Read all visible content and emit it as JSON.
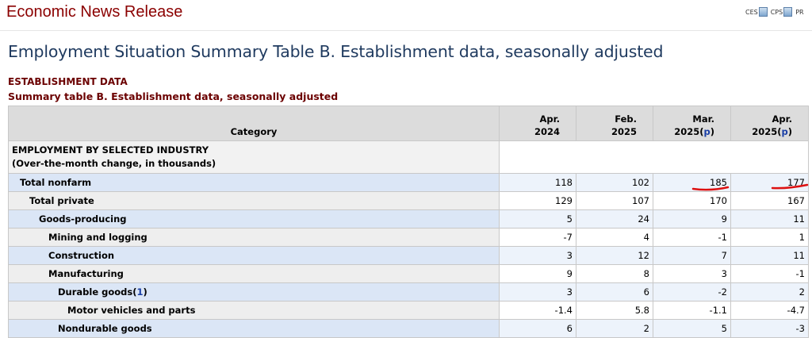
{
  "header": {
    "title": "Economic News Release",
    "links": [
      {
        "label": "CES",
        "icon": "pdf-icon"
      },
      {
        "label": "CPS",
        "icon": "pdf-icon"
      },
      {
        "label": "PR",
        "icon": "pdf-icon"
      }
    ]
  },
  "page_title": "Employment Situation Summary Table B. Establishment data, seasonally adjusted",
  "section_heading": "ESTABLISHMENT DATA",
  "table": {
    "caption": "Summary table B. Establishment data, seasonally adjusted",
    "category_header": "Category",
    "period_headers": [
      {
        "line1": "Apr.",
        "line2": "2024",
        "footnote": ""
      },
      {
        "line1": "Feb.",
        "line2": "2025",
        "footnote": ""
      },
      {
        "line1": "Mar.",
        "line2": "2025",
        "footnote": "p"
      },
      {
        "line1": "Apr.",
        "line2": "2025",
        "footnote": "p"
      }
    ],
    "group": {
      "title": "EMPLOYMENT BY SELECTED INDUSTRY",
      "subtitle": "(Over-the-month change, in thousands)"
    },
    "rows": [
      {
        "label": "Total nonfarm",
        "footnote": "",
        "values": [
          "118",
          "102",
          "185",
          "177"
        ]
      },
      {
        "label": "Total private",
        "footnote": "",
        "values": [
          "129",
          "107",
          "170",
          "167"
        ]
      },
      {
        "label": "Goods-producing",
        "footnote": "",
        "values": [
          "5",
          "24",
          "9",
          "11"
        ]
      },
      {
        "label": "Mining and logging",
        "footnote": "",
        "values": [
          "-7",
          "4",
          "-1",
          "1"
        ]
      },
      {
        "label": "Construction",
        "footnote": "",
        "values": [
          "3",
          "12",
          "7",
          "11"
        ]
      },
      {
        "label": "Manufacturing",
        "footnote": "",
        "values": [
          "9",
          "8",
          "3",
          "-1"
        ]
      },
      {
        "label": "Durable goods",
        "footnote": "1",
        "values": [
          "3",
          "6",
          "-2",
          "2"
        ]
      },
      {
        "label": "Motor vehicles and parts",
        "footnote": "",
        "values": [
          "-1.4",
          "5.8",
          "-1.1",
          "-4.7"
        ]
      },
      {
        "label": "Nondurable goods",
        "footnote": "",
        "values": [
          "6",
          "2",
          "5",
          "-3"
        ]
      }
    ]
  },
  "annotation_color": "#dd1111"
}
